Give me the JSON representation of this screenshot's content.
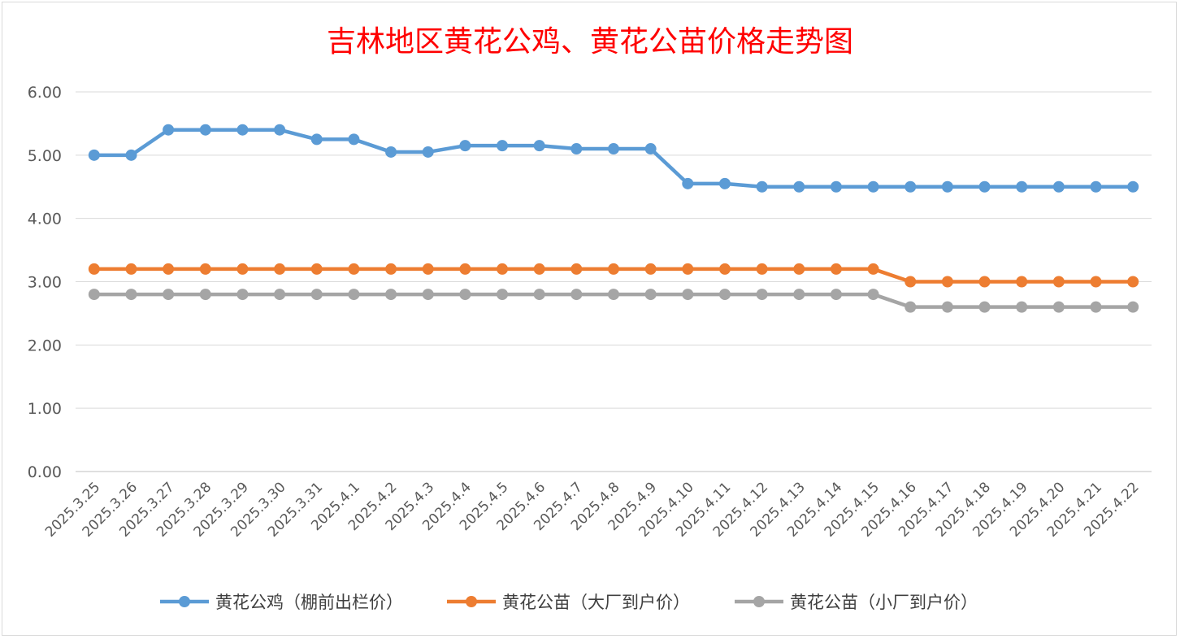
{
  "chart_data": {
    "type": "line",
    "title": "吉林地区黄花公鸡、黄花公苗价格走势图",
    "xlabel": "",
    "ylabel": "",
    "ylim": [
      0,
      6
    ],
    "yticks": [
      "0.00",
      "1.00",
      "2.00",
      "3.00",
      "4.00",
      "5.00",
      "6.00"
    ],
    "grid": true,
    "legend_position": "bottom",
    "categories": [
      "2025.3.25",
      "2025.3.26",
      "2025.3.27",
      "2025.3.28",
      "2025.3.29",
      "2025.3.30",
      "2025.3.31",
      "2025.4.1",
      "2025.4.2",
      "2025.4.3",
      "2025.4.4",
      "2025.4.5",
      "2025.4.6",
      "2025.4.7",
      "2025.4.8",
      "2025.4.9",
      "2025.4.10",
      "2025.4.11",
      "2025.4.12",
      "2025.4.13",
      "2025.4.14",
      "2025.4.15",
      "2025.4.16",
      "2025.4.17",
      "2025.4.18",
      "2025.4.19",
      "2025.4.20",
      "2025.4.21",
      "2025.4.22"
    ],
    "series": [
      {
        "name": "黄花公鸡（棚前出栏价）",
        "color": "#5b9bd5",
        "values": [
          5.0,
          5.0,
          5.4,
          5.4,
          5.4,
          5.4,
          5.25,
          5.25,
          5.05,
          5.05,
          5.15,
          5.15,
          5.15,
          5.1,
          5.1,
          5.1,
          4.55,
          4.55,
          4.5,
          4.5,
          4.5,
          4.5,
          4.5,
          4.5,
          4.5,
          4.5,
          4.5,
          4.5,
          4.5
        ]
      },
      {
        "name": "黄花公苗（大厂到户价）",
        "color": "#ed7d31",
        "values": [
          3.2,
          3.2,
          3.2,
          3.2,
          3.2,
          3.2,
          3.2,
          3.2,
          3.2,
          3.2,
          3.2,
          3.2,
          3.2,
          3.2,
          3.2,
          3.2,
          3.2,
          3.2,
          3.2,
          3.2,
          3.2,
          3.2,
          3.0,
          3.0,
          3.0,
          3.0,
          3.0,
          3.0,
          3.0
        ]
      },
      {
        "name": "黄花公苗（小厂到户价）",
        "color": "#a5a5a5",
        "values": [
          2.8,
          2.8,
          2.8,
          2.8,
          2.8,
          2.8,
          2.8,
          2.8,
          2.8,
          2.8,
          2.8,
          2.8,
          2.8,
          2.8,
          2.8,
          2.8,
          2.8,
          2.8,
          2.8,
          2.8,
          2.8,
          2.8,
          2.6,
          2.6,
          2.6,
          2.6,
          2.6,
          2.6,
          2.6
        ]
      }
    ]
  }
}
